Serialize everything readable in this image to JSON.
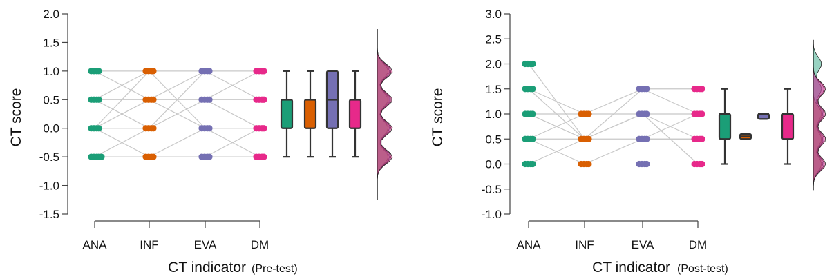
{
  "chart_data": [
    {
      "type": "raincloud",
      "ylabel": "CT score",
      "xlabel": "CT indicator",
      "xlabel_suffix": "(Pre-test)",
      "categories": [
        "ANA",
        "INF",
        "EVA",
        "DM"
      ],
      "ylim": [
        -1.5,
        2.0
      ],
      "yticks": [
        "-1.5",
        "-1.0",
        "-0.5",
        "0.0",
        "0.5",
        "1.0",
        "1.5",
        "2.0"
      ],
      "series": [
        {
          "category": "ANA",
          "color": "#1b9e77",
          "points": [
            -0.5,
            0.0,
            0.5,
            1.0
          ],
          "box": {
            "min": -0.5,
            "q1": 0.0,
            "median": 0.5,
            "q3": 0.5,
            "max": 1.0
          }
        },
        {
          "category": "INF",
          "color": "#d95f02",
          "points": [
            -0.5,
            0.0,
            0.5,
            1.0
          ],
          "box": {
            "min": -0.5,
            "q1": 0.0,
            "median": 0.5,
            "q3": 0.5,
            "max": 1.0
          }
        },
        {
          "category": "EVA",
          "color": "#7570b3",
          "points": [
            -0.5,
            0.0,
            0.5,
            1.0
          ],
          "box": {
            "min": -0.5,
            "q1": 0.0,
            "median": 0.5,
            "q3": 1.0,
            "max": 1.0
          }
        },
        {
          "category": "DM",
          "color": "#e7298a",
          "points": [
            -0.5,
            0.0,
            0.5,
            1.0
          ],
          "box": {
            "min": -0.5,
            "q1": 0.0,
            "median": 0.5,
            "q3": 0.5,
            "max": 1.0
          }
        }
      ]
    },
    {
      "type": "raincloud",
      "ylabel": "CT score",
      "xlabel": "CT indicator",
      "xlabel_suffix": "(Post-test)",
      "categories": [
        "ANA",
        "INF",
        "EVA",
        "DM"
      ],
      "ylim": [
        -1.0,
        3.0
      ],
      "yticks": [
        "-1.0",
        "-0.5",
        "0.0",
        "0.5",
        "1.0",
        "1.5",
        "2.0",
        "2.5",
        "3.0"
      ],
      "series": [
        {
          "category": "ANA",
          "color": "#1b9e77",
          "points": [
            0.0,
            0.5,
            1.0,
            1.5,
            2.0
          ],
          "box": {
            "min": 0.0,
            "q1": 0.5,
            "median": 1.0,
            "q3": 1.0,
            "max": 1.5
          }
        },
        {
          "category": "INF",
          "color": "#d95f02",
          "points": [
            0.0,
            0.5,
            1.0
          ],
          "box": {
            "min": 0.5,
            "q1": 0.5,
            "median": 0.55,
            "q3": 0.6,
            "max": 0.6
          }
        },
        {
          "category": "EVA",
          "color": "#7570b3",
          "points": [
            0.0,
            0.5,
            1.0,
            1.5
          ],
          "box": {
            "min": 0.9,
            "q1": 0.9,
            "median": 1.0,
            "q3": 1.0,
            "max": 1.0
          }
        },
        {
          "category": "DM",
          "color": "#e7298a",
          "points": [
            0.0,
            0.5,
            1.0,
            1.5
          ],
          "box": {
            "min": 0.0,
            "q1": 0.5,
            "median": 1.0,
            "q3": 1.0,
            "max": 1.5
          }
        }
      ]
    }
  ]
}
